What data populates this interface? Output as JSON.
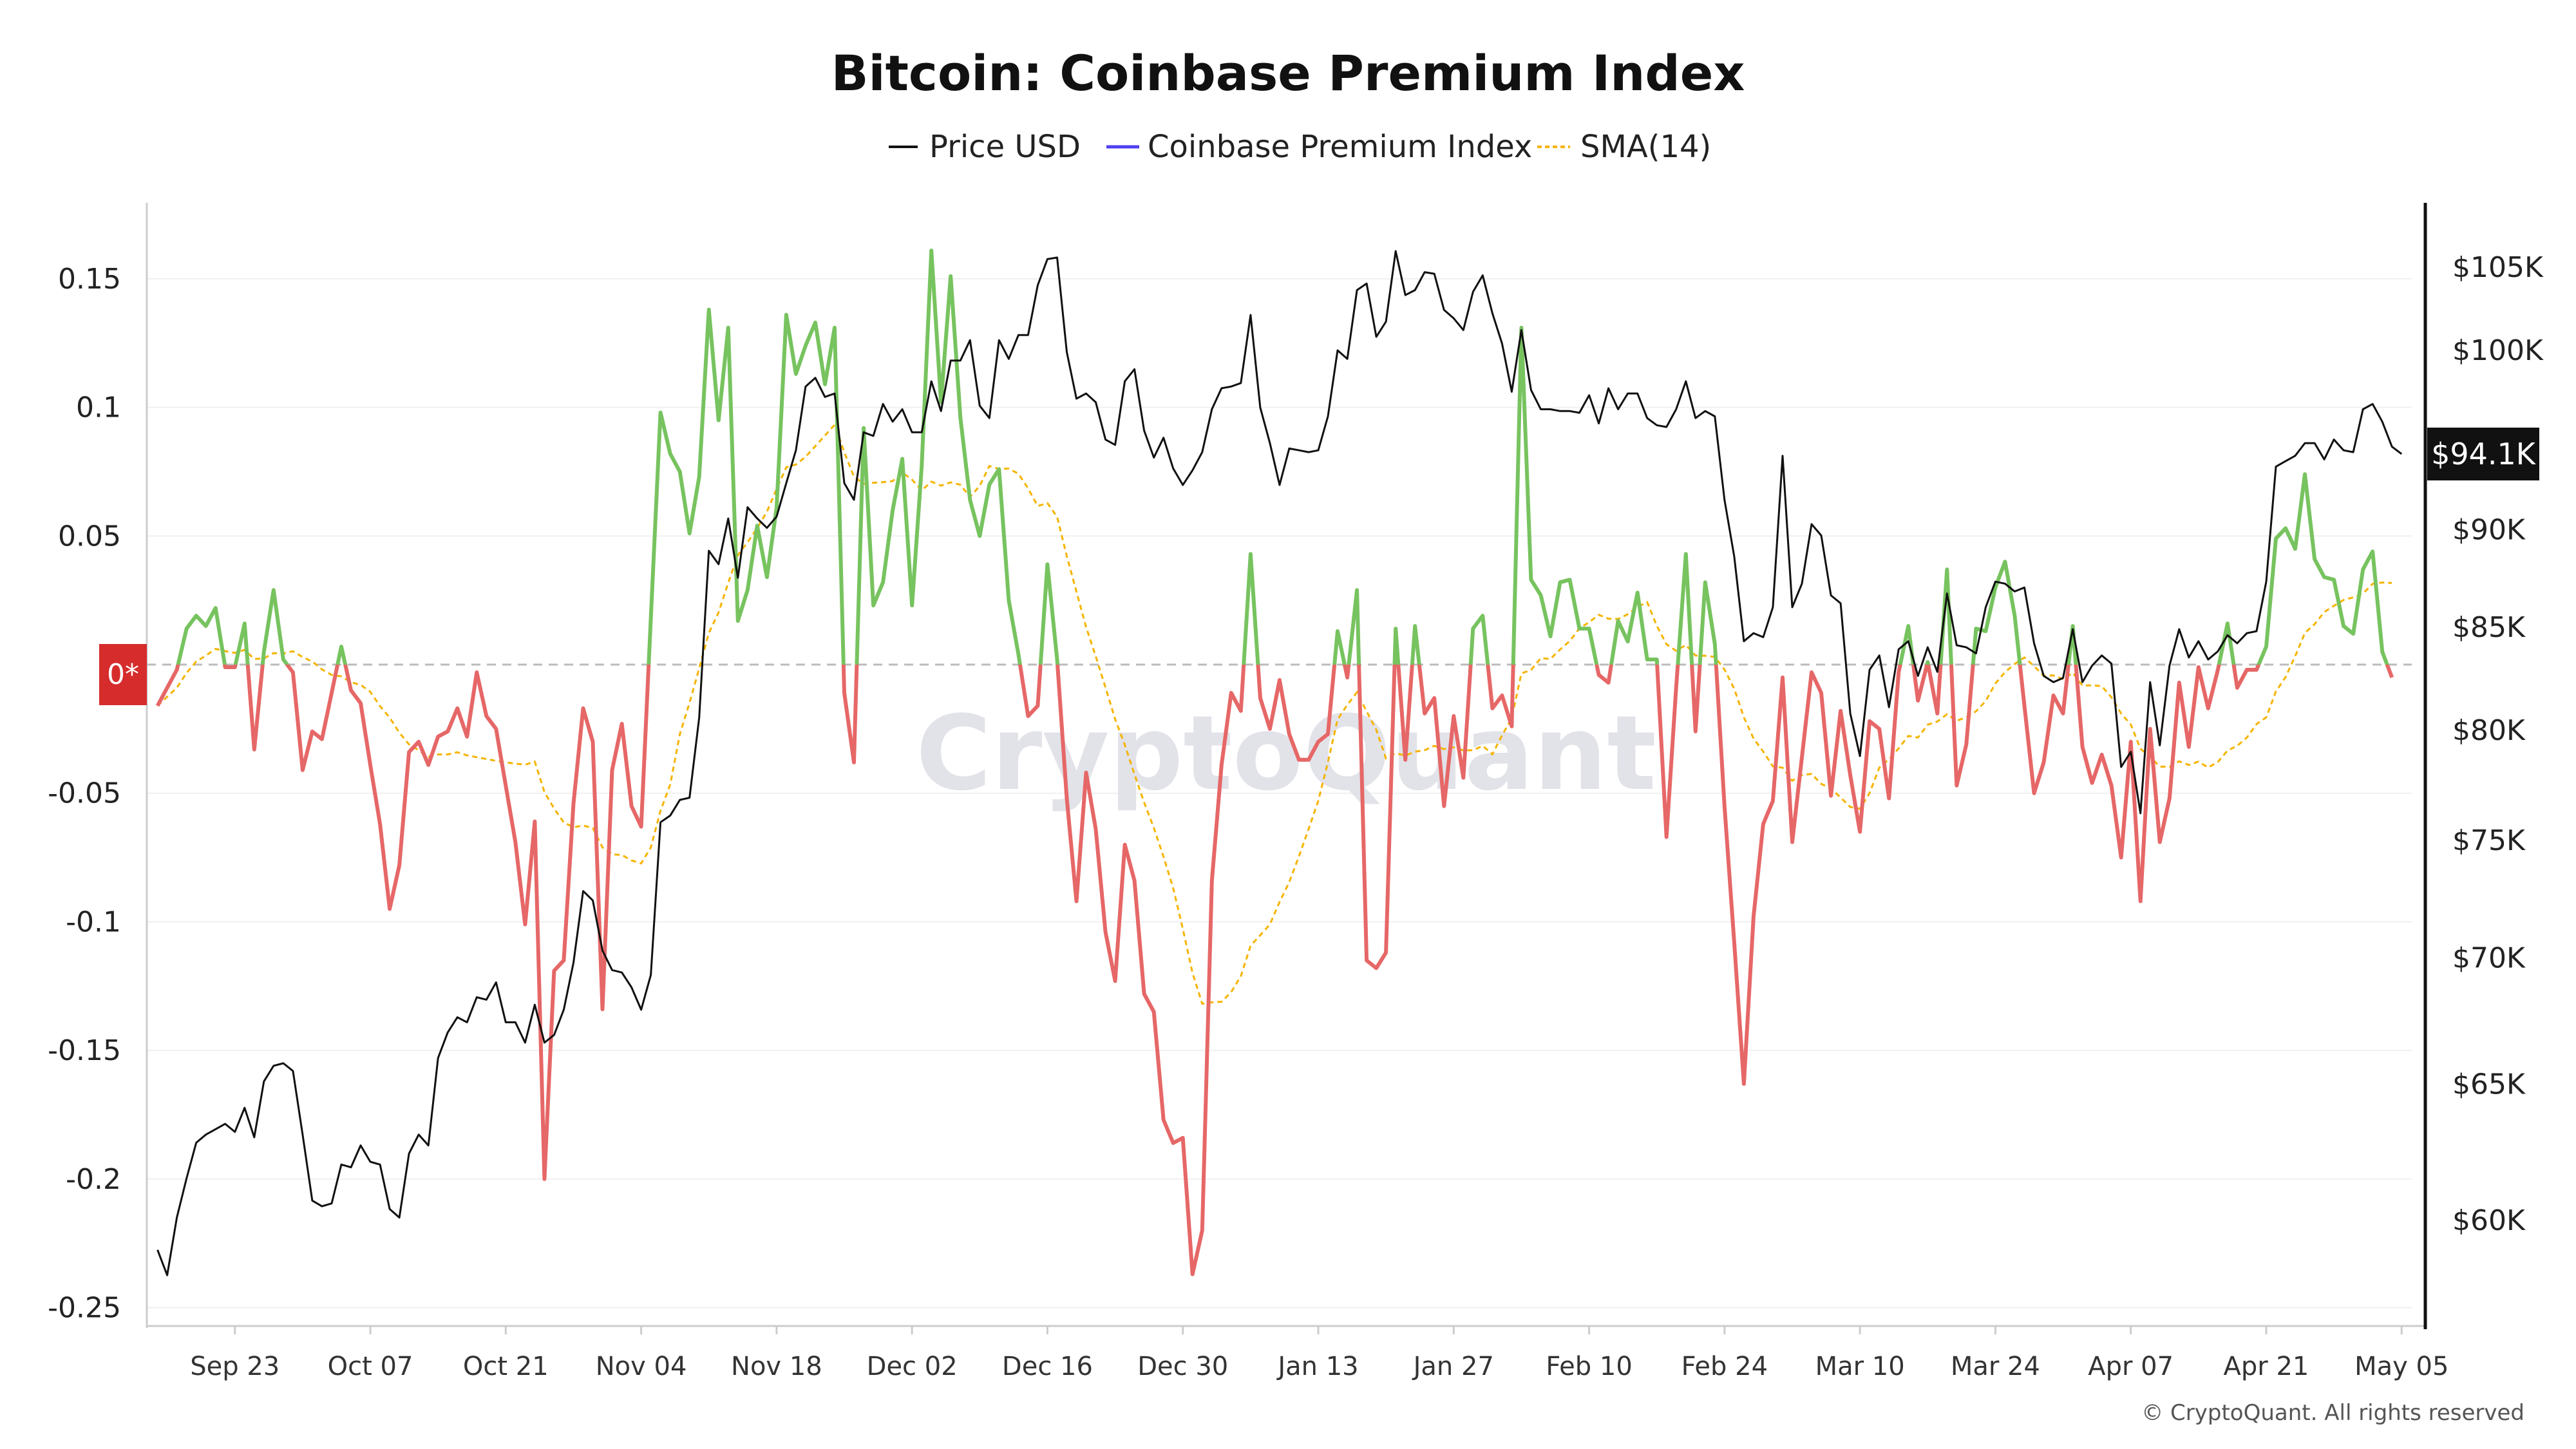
{
  "chart_data": {
    "type": "line",
    "title": "Bitcoin: Coinbase Premium Index",
    "legend": [
      "Price USD",
      "Coinbase Premium Index",
      "SMA(14)"
    ],
    "legend_position": "top",
    "left_axis": {
      "ticks": [
        "0.15",
        "0.1",
        "0.05",
        "-0.05",
        "-0.1",
        "-0.15",
        "-0.2",
        "-0.25"
      ],
      "zero_label": "0*",
      "range": [
        -0.25,
        0.15
      ]
    },
    "right_axis": {
      "scale": "log",
      "ticks": [
        "$105K",
        "$100K",
        "$90K",
        "$85K",
        "$80K",
        "$75K",
        "$70K",
        "$65K",
        "$60K"
      ],
      "current_value_label": "$94.1K"
    },
    "x_tick_labels": [
      "Sep 23",
      "Oct 07",
      "Oct 21",
      "Nov 04",
      "Nov 18",
      "Dec 02",
      "Dec 16",
      "Dec 30",
      "Jan 13",
      "Jan 27",
      "Feb 10",
      "Feb 24",
      "Mar 10",
      "Mar 24",
      "Apr 07",
      "Apr 21",
      "May 05"
    ],
    "grid": true,
    "colors": {
      "price": "#111111",
      "premium_legend": "#4f3ff0",
      "premium_positive": "#77c35f",
      "premium_negative": "#e66767",
      "sma": "#f5b400",
      "zero_line": "#bbbbbb"
    },
    "sma_window": 14,
    "series": [
      {
        "name": "Coinbase Premium Index",
        "values": [
          -0.016,
          -0.009,
          -0.002,
          0.014,
          0.019,
          0.015,
          0.022,
          -0.001,
          -0.001,
          0.016,
          -0.033,
          0.005,
          0.029,
          0.002,
          -0.003,
          -0.041,
          -0.026,
          -0.029,
          -0.011,
          0.007,
          -0.01,
          -0.015,
          -0.039,
          -0.062,
          -0.095,
          -0.078,
          -0.034,
          -0.03,
          -0.039,
          -0.028,
          -0.026,
          -0.017,
          -0.028,
          -0.003,
          -0.02,
          -0.025,
          -0.047,
          -0.069,
          -0.101,
          -0.061,
          -0.2,
          -0.119,
          -0.115,
          -0.054,
          -0.017,
          -0.03,
          -0.134,
          -0.041,
          -0.023,
          -0.055,
          -0.063,
          0.018,
          0.098,
          0.082,
          0.075,
          0.051,
          0.073,
          0.138,
          0.095,
          0.131,
          0.017,
          0.029,
          0.054,
          0.034,
          0.061,
          0.136,
          0.113,
          0.124,
          0.133,
          0.109,
          0.131,
          -0.011,
          -0.038,
          0.092,
          0.023,
          0.032,
          0.06,
          0.08,
          0.023,
          0.077,
          0.161,
          0.102,
          0.151,
          0.096,
          0.064,
          0.05,
          0.07,
          0.076,
          0.025,
          0.004,
          -0.02,
          -0.016,
          0.039,
          0.002,
          -0.052,
          -0.092,
          -0.042,
          -0.064,
          -0.104,
          -0.123,
          -0.07,
          -0.084,
          -0.128,
          -0.135,
          -0.177,
          -0.186,
          -0.184,
          -0.237,
          -0.22,
          -0.084,
          -0.039,
          -0.011,
          -0.018,
          0.043,
          -0.013,
          -0.025,
          -0.006,
          -0.027,
          -0.037,
          -0.037,
          -0.03,
          -0.027,
          0.013,
          -0.005,
          0.029,
          -0.115,
          -0.118,
          -0.112,
          0.014,
          -0.037,
          0.015,
          -0.019,
          -0.013,
          -0.055,
          -0.02,
          -0.044,
          0.014,
          0.019,
          -0.017,
          -0.012,
          -0.024,
          0.131,
          0.033,
          0.027,
          0.011,
          0.032,
          0.033,
          0.014,
          0.014,
          -0.004,
          -0.007,
          0.017,
          0.009,
          0.028,
          0.002,
          0.002,
          -0.067,
          -0.009,
          0.043,
          -0.026,
          0.032,
          0.008,
          -0.055,
          -0.108,
          -0.163,
          -0.098,
          -0.062,
          -0.053,
          -0.005,
          -0.069,
          -0.036,
          -0.003,
          -0.011,
          -0.051,
          -0.018,
          -0.043,
          -0.065,
          -0.022,
          -0.025,
          -0.052,
          -0.003,
          0.015,
          -0.014,
          0.001,
          -0.019,
          0.037,
          -0.047,
          -0.031,
          0.014,
          0.013,
          0.03,
          0.04,
          0.019,
          -0.016,
          -0.05,
          -0.038,
          -0.012,
          -0.019,
          0.015,
          -0.032,
          -0.046,
          -0.035,
          -0.047,
          -0.075,
          -0.03,
          -0.092,
          -0.025,
          -0.069,
          -0.052,
          -0.007,
          -0.032,
          -0.001,
          -0.017,
          -0.002,
          0.016,
          -0.009,
          -0.002,
          -0.002,
          0.007,
          0.049,
          0.053,
          0.045,
          0.074,
          0.041,
          0.034,
          0.033,
          0.015,
          0.012,
          0.037,
          0.044,
          0.005,
          -0.005
        ]
      },
      {
        "name": "Price USD",
        "values": [
          58970,
          58100,
          60100,
          61500,
          62800,
          63100,
          63300,
          63500,
          63200,
          64100,
          63000,
          65100,
          65700,
          65800,
          65500,
          63100,
          60700,
          60500,
          60600,
          62000,
          61900,
          62700,
          62100,
          62000,
          60400,
          60100,
          62400,
          63100,
          62700,
          66000,
          67000,
          67600,
          67400,
          68400,
          68300,
          69000,
          67400,
          67400,
          66600,
          68100,
          66600,
          66900,
          67900,
          69800,
          72800,
          72400,
          70300,
          69500,
          69400,
          68800,
          67900,
          69300,
          75800,
          76100,
          76800,
          76900,
          80600,
          88900,
          88200,
          90600,
          87500,
          91200,
          90600,
          90100,
          90700,
          92500,
          94300,
          97900,
          98400,
          97300,
          97500,
          92500,
          91600,
          95300,
          95100,
          96900,
          95900,
          96600,
          95300,
          95300,
          98200,
          96500,
          99400,
          99400,
          100600,
          96800,
          96100,
          100600,
          99500,
          100900,
          100900,
          103900,
          105500,
          105600,
          99900,
          97200,
          97500,
          97000,
          94900,
          94600,
          98200,
          98900,
          95400,
          93900,
          95000,
          93300,
          92400,
          93200,
          94200,
          96600,
          97800,
          97900,
          98100,
          102100,
          96700,
          94700,
          92400,
          94400,
          94300,
          94200,
          94300,
          96200,
          100000,
          99500,
          103600,
          104000,
          100800,
          101700,
          106000,
          103300,
          103600,
          104700,
          104600,
          102400,
          101900,
          101200,
          103500,
          104500,
          102200,
          100400,
          97600,
          101200,
          97700,
          96600,
          96600,
          96500,
          96500,
          96400,
          97400,
          95800,
          97800,
          96600,
          97500,
          97500,
          96100,
          95700,
          95600,
          96600,
          98200,
          96100,
          96500,
          96200,
          91600,
          88600,
          84300,
          84700,
          84500,
          86000,
          94000,
          86000,
          87200,
          90300,
          89700,
          86600,
          86200,
          80800,
          78800,
          82900,
          83600,
          81100,
          83900,
          84300,
          82600,
          84000,
          82800,
          86700,
          84100,
          84000,
          83700,
          86000,
          87300,
          87200,
          86800,
          87000,
          84200,
          82600,
          82300,
          82500,
          84900,
          82300,
          83100,
          83600,
          83200,
          78300,
          79000,
          76200,
          82300,
          79300,
          83100,
          84900,
          83500,
          84300,
          83400,
          83800,
          84600,
          84200,
          84700,
          84800,
          87300,
          93400,
          93700,
          94000,
          94700,
          94700,
          93800,
          94900,
          94300,
          94200,
          96600,
          96900,
          95900,
          94500,
          94100
        ]
      }
    ]
  },
  "watermark": "CryptoQuant",
  "copyright": "© CryptoQuant. All rights reserved"
}
